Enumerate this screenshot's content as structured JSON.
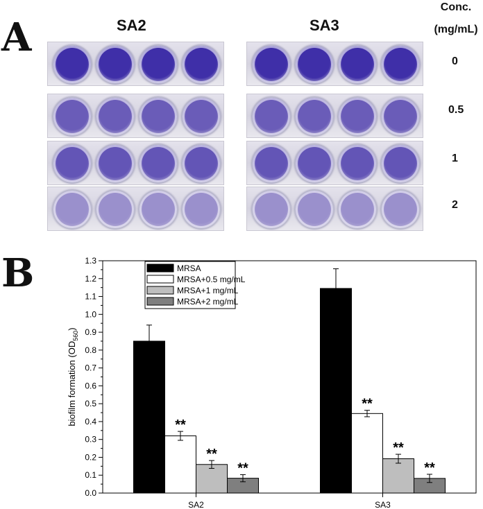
{
  "panels": {
    "a_label": "A",
    "b_label": "B"
  },
  "plates": {
    "columns": [
      "SA2",
      "SA3"
    ],
    "conc_header": [
      "Conc.",
      "(mg/mL)"
    ],
    "concentrations": [
      "0",
      "0.5",
      "1",
      "2"
    ],
    "row_colors": [
      "#3f2fa8",
      "#6a5cb8",
      "#6355b6",
      "#9a90cc"
    ]
  },
  "chart_data": {
    "type": "bar",
    "categories": [
      "SA2",
      "SA3"
    ],
    "ylabel_main": "biofilm formation (OD",
    "ylabel_sub": "560",
    "ylabel_end": ")",
    "ylim": [
      0,
      1.3
    ],
    "yticks": [
      "0.0",
      "0.1",
      "0.2",
      "0.3",
      "0.4",
      "0.5",
      "0.6",
      "0.7",
      "0.8",
      "0.9",
      "1.0",
      "1.1",
      "1.2",
      "1.3"
    ],
    "series": [
      {
        "name": "MRSA",
        "color": "#000000",
        "values": [
          0.85,
          1.145
        ],
        "errors": [
          0.09,
          0.11
        ],
        "sig": [
          "",
          ""
        ]
      },
      {
        "name": "MRSA+0.5 mg/mL",
        "color": "#ffffff",
        "values": [
          0.32,
          0.445
        ],
        "errors": [
          0.025,
          0.018
        ],
        "sig": [
          "**",
          "**"
        ]
      },
      {
        "name": "MRSA+1 mg/mL",
        "color": "#bebebe",
        "values": [
          0.16,
          0.192
        ],
        "errors": [
          0.022,
          0.025
        ],
        "sig": [
          "**",
          "**"
        ]
      },
      {
        "name": "MRSA+2 mg/mL",
        "color": "#7f7f7f",
        "values": [
          0.083,
          0.082
        ],
        "errors": [
          0.02,
          0.023
        ],
        "sig": [
          "**",
          "**"
        ]
      }
    ],
    "legend_position": "top-left"
  }
}
